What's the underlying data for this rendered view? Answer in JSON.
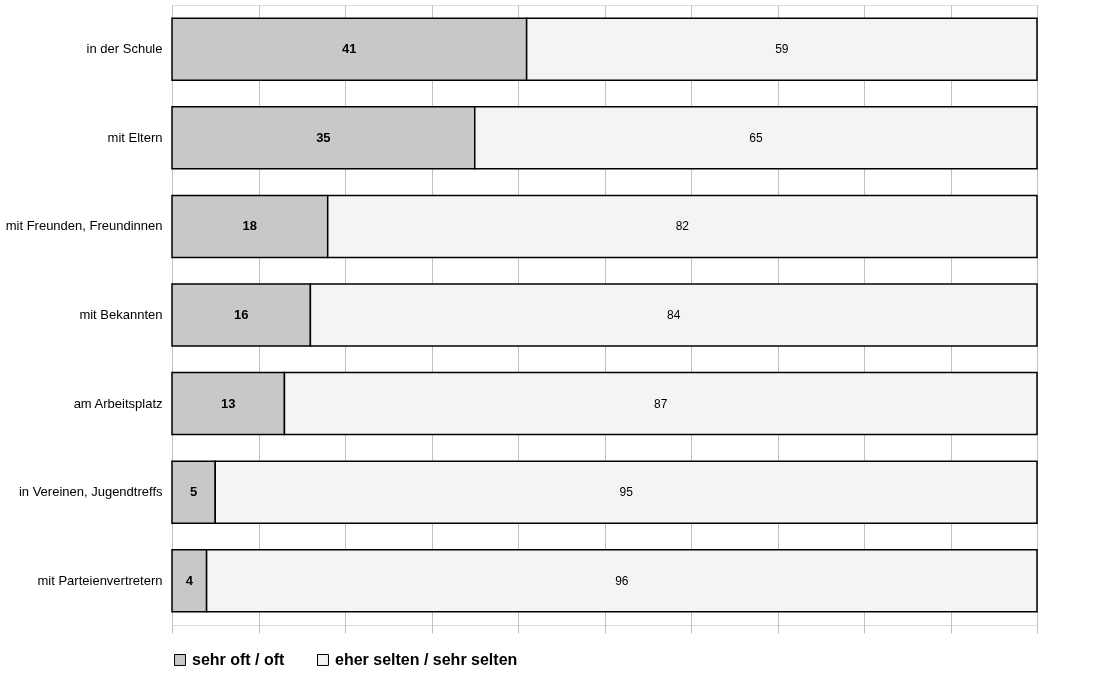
{
  "chart_data": {
    "type": "bar",
    "orientation": "horizontal",
    "stacked": true,
    "data_labels": true,
    "grid": "x",
    "legend": "bottom",
    "tick_labels": "y",
    "categories": [
      "in der Schule",
      "mit Eltern",
      "mit Freunden, Freundinnen",
      "mit Bekannten",
      "am Arbeitsplatz",
      "in Vereinen, Jugendtreffs",
      "mit Parteienvertretern"
    ],
    "xlim": [
      0,
      100
    ],
    "xticks": [
      {
        "value": 0,
        "label": null
      },
      {
        "value": 10,
        "label": null
      },
      {
        "value": 20,
        "label": null
      },
      {
        "value": 30,
        "label": null
      },
      {
        "value": 40,
        "label": null
      },
      {
        "value": 50,
        "label": null
      },
      {
        "value": 60,
        "label": null
      },
      {
        "value": 70,
        "label": null
      },
      {
        "value": 80,
        "label": null
      },
      {
        "value": 90,
        "label": null
      },
      {
        "value": 100,
        "label": null
      }
    ],
    "series": [
      {
        "name": "sehr oft / oft",
        "color": "#c8c8c8",
        "values": [
          41,
          35,
          18,
          16,
          13,
          5,
          4
        ]
      },
      {
        "name": "eher selten / sehr selten",
        "color": "#f4f4f4",
        "values": [
          59,
          65,
          82,
          84,
          87,
          95,
          96
        ]
      }
    ]
  }
}
